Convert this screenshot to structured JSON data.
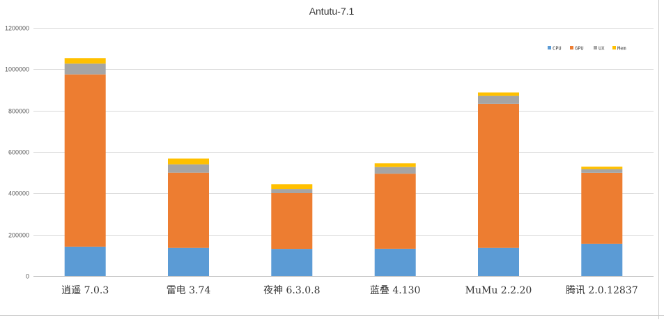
{
  "chart_data": {
    "type": "bar",
    "stacked": true,
    "title": "Antutu-7.1",
    "categories": [
      "逍遥 7.0.3",
      "雷电 3.74",
      "夜神 6.3.0.8",
      "蓝叠 4.130",
      "MuMu 2.2.20",
      "腾讯 2.0.12837"
    ],
    "series": [
      {
        "name": "CPU",
        "color": "#5b9bd5",
        "values": [
          142000,
          136000,
          131000,
          132000,
          136000,
          156000
        ]
      },
      {
        "name": "GPU",
        "color": "#ed7d31",
        "values": [
          833000,
          364000,
          270000,
          363000,
          697000,
          343000
        ]
      },
      {
        "name": "UX",
        "color": "#a5a5a5",
        "values": [
          52000,
          40000,
          20000,
          32000,
          38000,
          18000
        ]
      },
      {
        "name": "Mem",
        "color": "#ffc000",
        "values": [
          27000,
          28000,
          23000,
          18000,
          17000,
          12000
        ]
      }
    ],
    "yticks": [
      "0",
      "200000",
      "400000",
      "600000",
      "800000",
      "1000000",
      "1200000"
    ],
    "ylim": [
      0,
      1200000
    ],
    "grid": true,
    "legend_position": "top-right",
    "xlabel": "",
    "ylabel": ""
  }
}
